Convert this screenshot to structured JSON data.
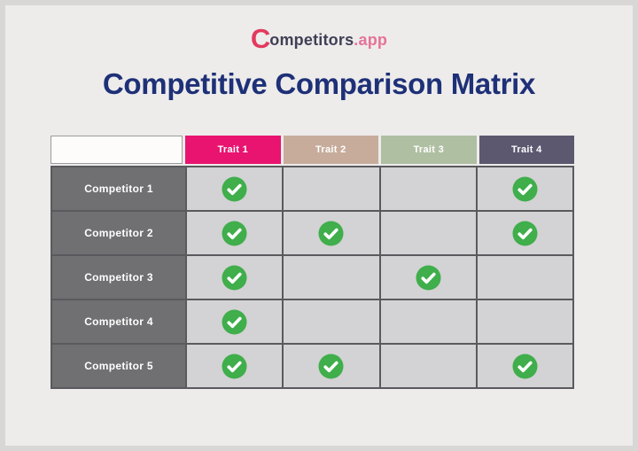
{
  "logo": {
    "mark": "C",
    "name_rest": "ompetitors",
    "suffix": ".app",
    "mark_color": "#e23a5e",
    "name_color": "#403f55",
    "suffix_color": "#e5739a"
  },
  "title": {
    "text": "Competitive Comparison Matrix",
    "color": "#1e3077"
  },
  "chart_data": {
    "type": "table",
    "title": "Competitive Comparison Matrix",
    "columns": [
      "Trait 1",
      "Trait 2",
      "Trait 3",
      "Trait 4"
    ],
    "rows": [
      "Competitor 1",
      "Competitor 2",
      "Competitor 3",
      "Competitor 4",
      "Competitor 5"
    ],
    "checks": [
      [
        true,
        false,
        false,
        true
      ],
      [
        true,
        true,
        false,
        true
      ],
      [
        true,
        false,
        true,
        false
      ],
      [
        true,
        false,
        false,
        false
      ],
      [
        true,
        true,
        false,
        true
      ]
    ],
    "check_meaning": "green circled checkmark = competitor has trait"
  },
  "table": {
    "column_colors": [
      "#e81470",
      "#c7ac9b",
      "#afbfa2",
      "#5b5870"
    ],
    "label_bg": "#706f72",
    "cell_bg": "#d3d2d4",
    "grid_color": "#5a595d",
    "check_color": "#3fae4b",
    "corner_bg": "#fdfcfb"
  }
}
